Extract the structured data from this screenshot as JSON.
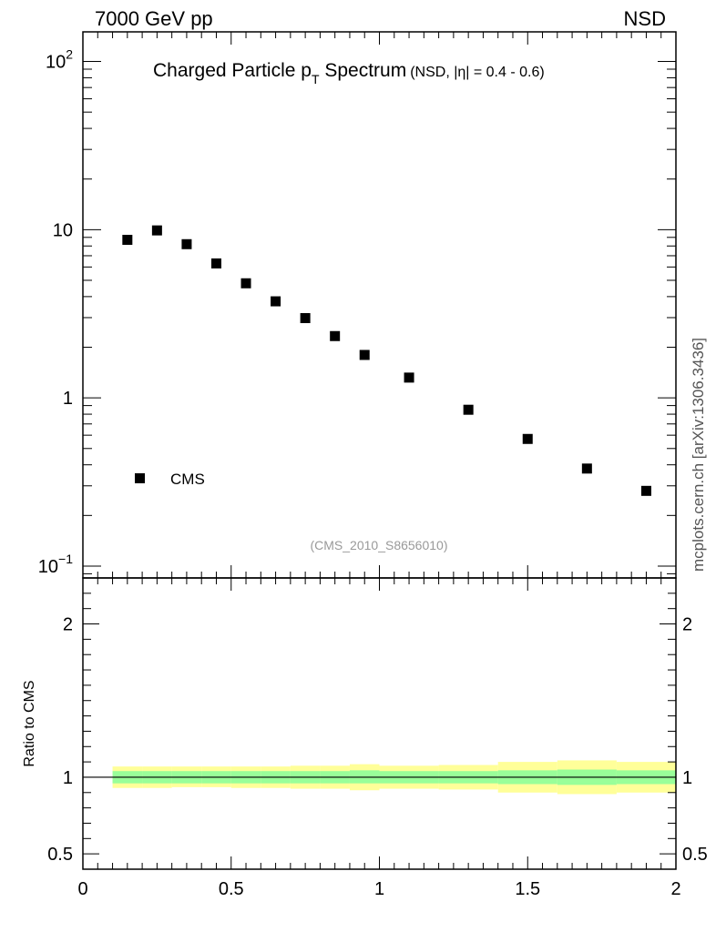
{
  "header": {
    "energy": "7000 GeV pp",
    "process": "NSD"
  },
  "side_note": "mcplots.cern.ch [arXiv:1306.3436]",
  "chart_data": [
    {
      "type": "scatter",
      "title": "Charged Particle p",
      "title_subscript": "T",
      "title_suffix": " Spectrum",
      "subtitle": "(NSD, |η| = 0.4 - 0.6)",
      "analysis_label": "(CMS_2010_S8656010)",
      "xlim": [
        0,
        2
      ],
      "ylim": [
        0.085,
        150
      ],
      "yscale": "log",
      "y_ticks": [
        {
          "value": 100,
          "label": "10",
          "sup": "2"
        },
        {
          "value": 10,
          "label": "10",
          "sup": ""
        },
        {
          "value": 1,
          "label": "1",
          "sup": ""
        },
        {
          "value": 0.1,
          "label": "10",
          "sup": "−1"
        }
      ],
      "legend": {
        "position": "bottom-left",
        "entries": [
          "CMS"
        ]
      },
      "series": [
        {
          "name": "CMS",
          "marker": "square",
          "color": "#000000",
          "x": [
            0.15,
            0.25,
            0.35,
            0.45,
            0.55,
            0.65,
            0.75,
            0.85,
            0.95,
            1.1,
            1.3,
            1.5,
            1.7,
            1.9
          ],
          "y": [
            8.7,
            9.9,
            8.2,
            6.3,
            4.8,
            3.75,
            2.98,
            2.33,
            1.8,
            1.32,
            0.85,
            0.57,
            0.38,
            0.28
          ]
        }
      ]
    },
    {
      "type": "area",
      "ylabel": "Ratio to CMS",
      "xlim": [
        0,
        2
      ],
      "ylim": [
        0.4,
        2.3
      ],
      "x_ticks": [
        {
          "value": 0,
          "label": "0"
        },
        {
          "value": 0.5,
          "label": "0.5"
        },
        {
          "value": 1,
          "label": "1"
        },
        {
          "value": 1.5,
          "label": "1.5"
        },
        {
          "value": 2,
          "label": "2"
        }
      ],
      "y_ticks": [
        {
          "value": 2,
          "label": "2"
        },
        {
          "value": 1,
          "label": "1"
        },
        {
          "value": 0.5,
          "label": "0.5"
        }
      ],
      "reference_line": 1,
      "band_colors": {
        "outer": "#ffff99",
        "inner": "#99ff99"
      },
      "bins": [
        {
          "x0": 0.1,
          "x1": 0.2,
          "inner": [
            0.96,
            1.04
          ],
          "outer": [
            0.93,
            1.07
          ]
        },
        {
          "x0": 0.2,
          "x1": 0.3,
          "inner": [
            0.96,
            1.04
          ],
          "outer": [
            0.93,
            1.07
          ]
        },
        {
          "x0": 0.3,
          "x1": 0.4,
          "inner": [
            0.96,
            1.04
          ],
          "outer": [
            0.935,
            1.07
          ]
        },
        {
          "x0": 0.4,
          "x1": 0.5,
          "inner": [
            0.96,
            1.04
          ],
          "outer": [
            0.935,
            1.07
          ]
        },
        {
          "x0": 0.5,
          "x1": 0.6,
          "inner": [
            0.96,
            1.04
          ],
          "outer": [
            0.93,
            1.07
          ]
        },
        {
          "x0": 0.6,
          "x1": 0.7,
          "inner": [
            0.96,
            1.04
          ],
          "outer": [
            0.93,
            1.07
          ]
        },
        {
          "x0": 0.7,
          "x1": 0.8,
          "inner": [
            0.96,
            1.04
          ],
          "outer": [
            0.925,
            1.075
          ]
        },
        {
          "x0": 0.8,
          "x1": 0.9,
          "inner": [
            0.96,
            1.04
          ],
          "outer": [
            0.925,
            1.075
          ]
        },
        {
          "x0": 0.9,
          "x1": 1.0,
          "inner": [
            0.96,
            1.045
          ],
          "outer": [
            0.915,
            1.085
          ]
        },
        {
          "x0": 1.0,
          "x1": 1.2,
          "inner": [
            0.96,
            1.04
          ],
          "outer": [
            0.925,
            1.075
          ]
        },
        {
          "x0": 1.2,
          "x1": 1.4,
          "inner": [
            0.96,
            1.04
          ],
          "outer": [
            0.92,
            1.08
          ]
        },
        {
          "x0": 1.4,
          "x1": 1.6,
          "inner": [
            0.955,
            1.045
          ],
          "outer": [
            0.9,
            1.1
          ]
        },
        {
          "x0": 1.6,
          "x1": 1.8,
          "inner": [
            0.95,
            1.05
          ],
          "outer": [
            0.89,
            1.11
          ]
        },
        {
          "x0": 1.8,
          "x1": 2.0,
          "inner": [
            0.955,
            1.045
          ],
          "outer": [
            0.9,
            1.1
          ]
        }
      ]
    }
  ]
}
